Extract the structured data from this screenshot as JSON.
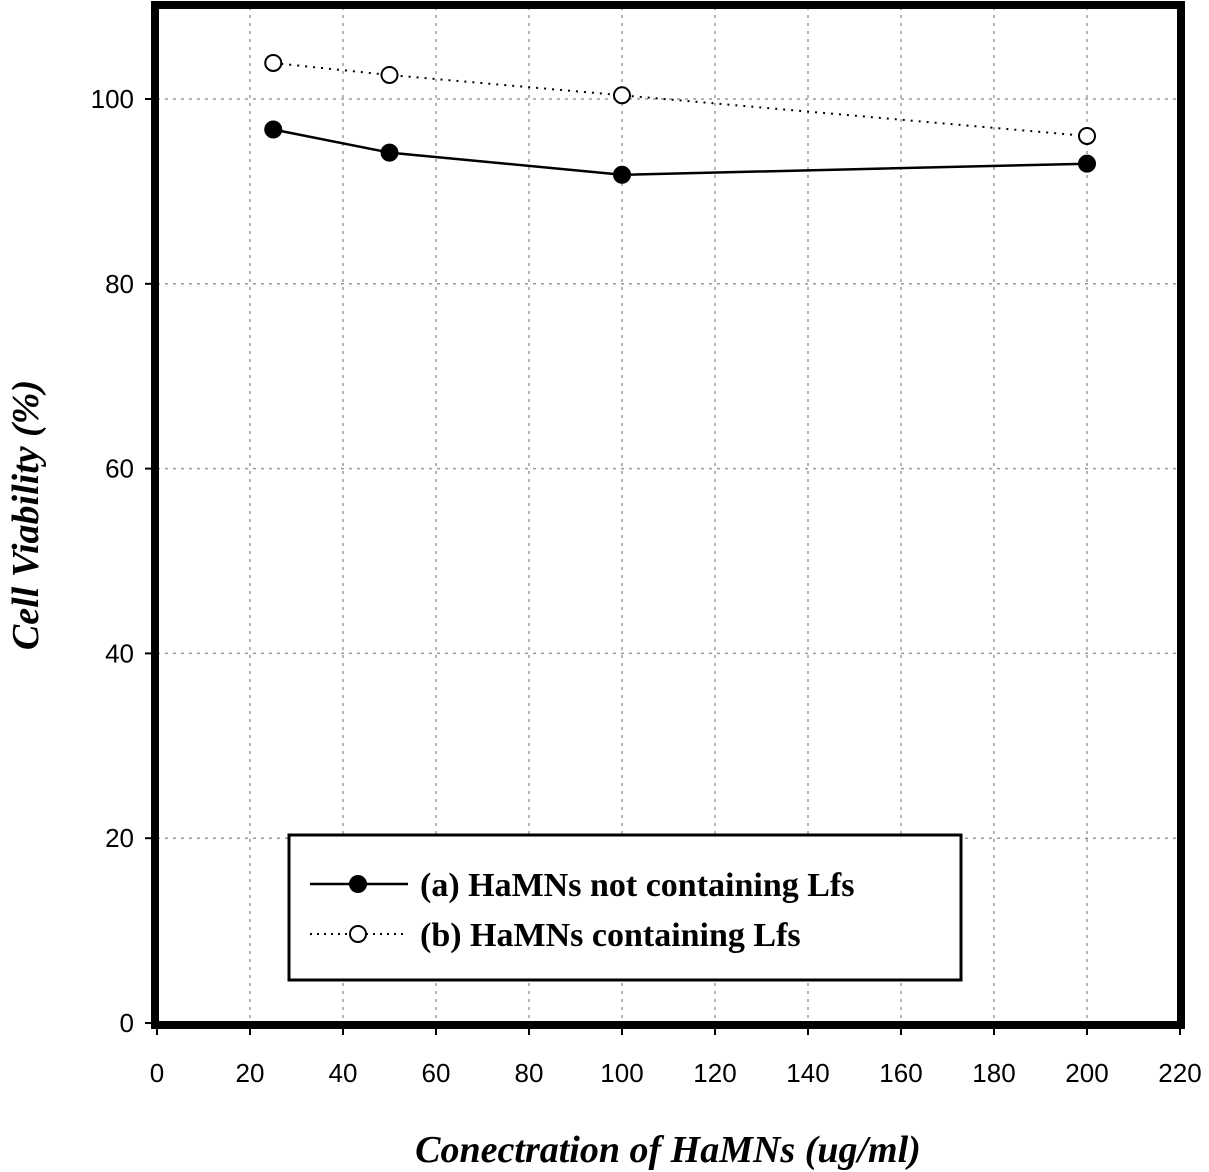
{
  "chart_data": {
    "type": "line",
    "title": "",
    "xlabel": "Conectration of HaMNs (ug/ml)",
    "ylabel": "Cell Viability (%)",
    "xlim": [
      0,
      220
    ],
    "ylim": [
      0,
      110
    ],
    "x_ticks": [
      "0",
      "20",
      "40",
      "60",
      "80",
      "100",
      "120",
      "140",
      "160",
      "180",
      "200",
      "220"
    ],
    "y_ticks": [
      "0",
      "20",
      "40",
      "60",
      "80",
      "100"
    ],
    "grid": true,
    "legend_position": "bottom-center",
    "series": [
      {
        "name": "(a) HaMNs not containing Lfs",
        "marker": "filled-circle",
        "line_style": "solid",
        "x": [
          25,
          50,
          100,
          200
        ],
        "y": [
          96.7,
          94.2,
          91.8,
          93.0
        ]
      },
      {
        "name": "(b) HaMNs containing Lfs",
        "marker": "open-circle",
        "line_style": "dotted",
        "x": [
          25,
          50,
          100,
          200
        ],
        "y": [
          103.9,
          102.6,
          100.4,
          96.0
        ]
      }
    ]
  }
}
